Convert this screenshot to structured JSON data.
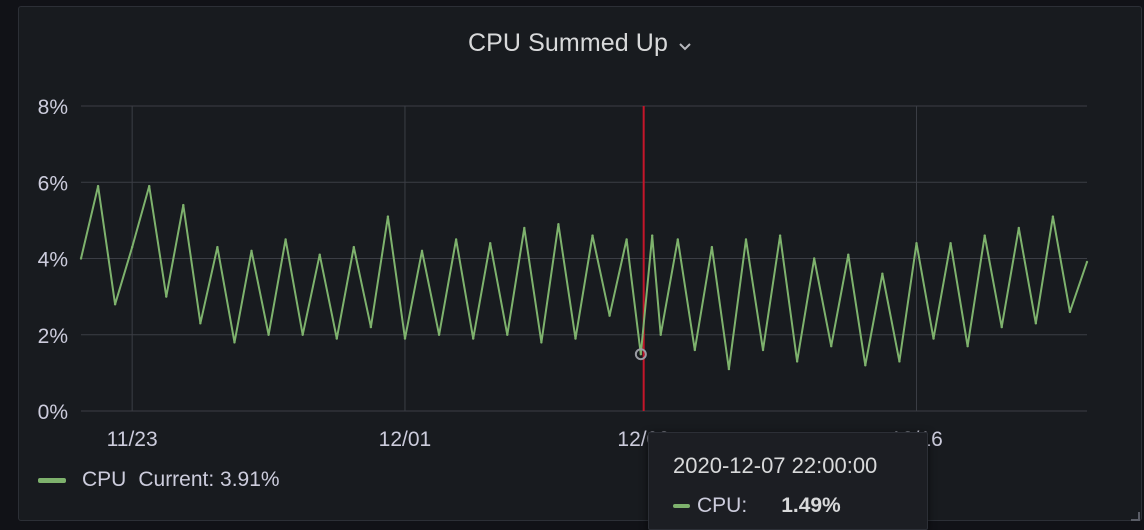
{
  "panel": {
    "title": "CPU Summed Up",
    "title_icon": "chevron-down-icon",
    "resize_icon": "resize-handle-icon"
  },
  "legend": {
    "series_name": "CPU",
    "current_label": "Current: 3.91%",
    "color": "#7eb26d"
  },
  "tooltip": {
    "time": "2020-12-07 22:00:00",
    "series": "CPU:",
    "value": "1.49%"
  },
  "chart_data": {
    "type": "line",
    "title": "CPU Summed Up",
    "y_ticks": [
      "0%",
      "2%",
      "4%",
      "6%",
      "8%"
    ],
    "ylim": [
      0,
      8
    ],
    "x_ticks": [
      "11/23",
      "12/01",
      "12/08",
      "12/16"
    ],
    "xlim": [
      "2020-11-21T12:00:00",
      "2020-12-21T00:00:00"
    ],
    "x_tick_values": [
      "2020-11-23T00:00:00",
      "2020-12-01T00:00:00",
      "2020-12-08T00:00:00",
      "2020-12-16T00:00:00"
    ],
    "grid": true,
    "color": "#7eb26d",
    "series": [
      {
        "name": "CPU",
        "x": [
          "2020-11-21T12:00:00",
          "2020-11-22T00:00:00",
          "2020-11-22T12:00:00",
          "2020-11-23T00:00:00",
          "2020-11-23T12:00:00",
          "2020-11-24T00:00:00",
          "2020-11-24T12:00:00",
          "2020-11-25T00:00:00",
          "2020-11-25T12:00:00",
          "2020-11-26T00:00:00",
          "2020-11-26T12:00:00",
          "2020-11-27T00:00:00",
          "2020-11-27T12:00:00",
          "2020-11-28T00:00:00",
          "2020-11-28T12:00:00",
          "2020-11-29T00:00:00",
          "2020-11-29T12:00:00",
          "2020-11-30T00:00:00",
          "2020-11-30T12:00:00",
          "2020-12-01T00:00:00",
          "2020-12-01T12:00:00",
          "2020-12-02T00:00:00",
          "2020-12-02T12:00:00",
          "2020-12-03T00:00:00",
          "2020-12-03T12:00:00",
          "2020-12-04T00:00:00",
          "2020-12-04T12:00:00",
          "2020-12-05T00:00:00",
          "2020-12-05T12:00:00",
          "2020-12-06T00:00:00",
          "2020-12-06T12:00:00",
          "2020-12-07T00:00:00",
          "2020-12-07T12:00:00",
          "2020-12-07T22:00:00",
          "2020-12-08T06:00:00",
          "2020-12-08T12:00:00",
          "2020-12-09T00:00:00",
          "2020-12-09T12:00:00",
          "2020-12-10T00:00:00",
          "2020-12-10T12:00:00",
          "2020-12-11T00:00:00",
          "2020-12-11T12:00:00",
          "2020-12-12T00:00:00",
          "2020-12-12T12:00:00",
          "2020-12-13T00:00:00",
          "2020-12-13T12:00:00",
          "2020-12-14T00:00:00",
          "2020-12-14T12:00:00",
          "2020-12-15T00:00:00",
          "2020-12-15T12:00:00",
          "2020-12-16T00:00:00",
          "2020-12-16T12:00:00",
          "2020-12-17T00:00:00",
          "2020-12-17T12:00:00",
          "2020-12-18T00:00:00",
          "2020-12-18T12:00:00",
          "2020-12-19T00:00:00",
          "2020-12-19T12:00:00",
          "2020-12-20T00:00:00",
          "2020-12-20T12:00:00",
          "2020-12-21T00:00:00"
        ],
        "values": [
          4.0,
          5.9,
          2.8,
          4.3,
          5.9,
          3.0,
          5.4,
          2.3,
          4.3,
          1.8,
          4.2,
          2.0,
          4.5,
          2.0,
          4.1,
          1.9,
          4.3,
          2.2,
          5.1,
          1.9,
          4.2,
          2.0,
          4.5,
          1.9,
          4.4,
          2.0,
          4.8,
          1.8,
          4.9,
          1.9,
          4.6,
          2.5,
          4.5,
          1.49,
          4.6,
          2.0,
          4.5,
          1.6,
          4.3,
          1.1,
          4.5,
          1.6,
          4.6,
          1.3,
          4.0,
          1.7,
          4.1,
          1.2,
          3.6,
          1.3,
          4.4,
          1.9,
          4.4,
          1.7,
          4.6,
          2.2,
          4.8,
          2.3,
          5.1,
          2.6,
          3.91
        ]
      }
    ],
    "markers": [
      {
        "type": "annotation-line",
        "x": "2020-12-08T00:00:00",
        "color": "#c4162a"
      }
    ],
    "hover_point": {
      "x": "2020-12-07T22:00:00",
      "y": 1.49
    }
  }
}
